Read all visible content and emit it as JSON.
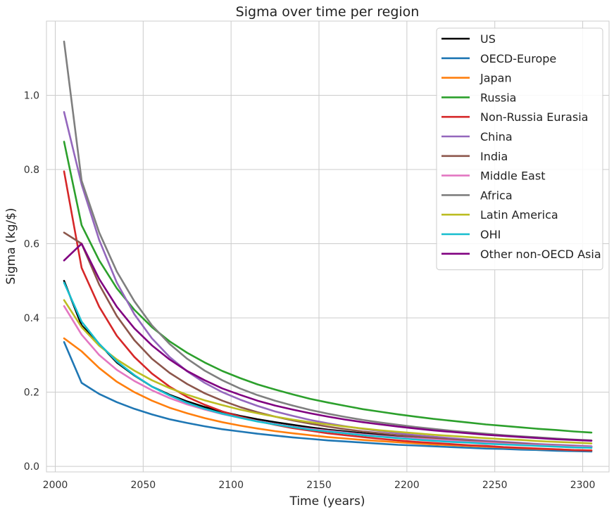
{
  "chart_data": {
    "type": "line",
    "title": "Sigma over time per region",
    "xlabel": "Time (years)",
    "ylabel": "Sigma (kg/$)",
    "xlim": [
      1995,
      2315
    ],
    "ylim": [
      -0.015,
      1.2
    ],
    "xticks": [
      2000,
      2050,
      2100,
      2150,
      2200,
      2250,
      2300
    ],
    "yticks": [
      0.0,
      0.2,
      0.4,
      0.6,
      0.8,
      1.0
    ],
    "grid": true,
    "legend_position": "top-right",
    "x": [
      2005,
      2015,
      2025,
      2035,
      2045,
      2055,
      2065,
      2075,
      2085,
      2095,
      2105,
      2115,
      2125,
      2135,
      2145,
      2155,
      2165,
      2175,
      2185,
      2195,
      2205,
      2215,
      2225,
      2235,
      2245,
      2255,
      2265,
      2275,
      2285,
      2295,
      2305
    ],
    "series": [
      {
        "name": "US",
        "color": "#000000",
        "values": [
          0.5,
          0.38,
          0.33,
          0.28,
          0.245,
          0.215,
          0.193,
          0.175,
          0.16,
          0.147,
          0.136,
          0.127,
          0.119,
          0.112,
          0.105,
          0.099,
          0.094,
          0.089,
          0.085,
          0.081,
          0.077,
          0.074,
          0.071,
          0.068,
          0.066,
          0.063,
          0.061,
          0.059,
          0.057,
          0.055,
          0.053
        ]
      },
      {
        "name": "OECD-Europe",
        "color": "#1f77b4",
        "values": [
          0.335,
          0.225,
          0.195,
          0.173,
          0.155,
          0.14,
          0.127,
          0.117,
          0.108,
          0.1,
          0.094,
          0.088,
          0.083,
          0.078,
          0.074,
          0.07,
          0.067,
          0.064,
          0.061,
          0.058,
          0.056,
          0.054,
          0.052,
          0.05,
          0.048,
          0.047,
          0.045,
          0.044,
          0.042,
          0.041,
          0.04
        ]
      },
      {
        "name": "Japan",
        "color": "#ff7f0e",
        "values": [
          0.345,
          0.31,
          0.265,
          0.228,
          0.2,
          0.177,
          0.158,
          0.143,
          0.13,
          0.119,
          0.11,
          0.102,
          0.095,
          0.089,
          0.084,
          0.079,
          0.075,
          0.071,
          0.068,
          0.065,
          0.062,
          0.059,
          0.057,
          0.055,
          0.053,
          0.051,
          0.049,
          0.047,
          0.046,
          0.044,
          0.043
        ]
      },
      {
        "name": "Russia",
        "color": "#2ca02c",
        "values": [
          0.875,
          0.65,
          0.555,
          0.48,
          0.422,
          0.375,
          0.337,
          0.306,
          0.28,
          0.257,
          0.238,
          0.221,
          0.207,
          0.194,
          0.182,
          0.172,
          0.163,
          0.154,
          0.147,
          0.14,
          0.134,
          0.128,
          0.123,
          0.118,
          0.113,
          0.109,
          0.105,
          0.101,
          0.098,
          0.094,
          0.091
        ]
      },
      {
        "name": "Non-Russia Eurasia",
        "color": "#d62728",
        "values": [
          0.795,
          0.535,
          0.43,
          0.352,
          0.295,
          0.25,
          0.215,
          0.187,
          0.166,
          0.148,
          0.134,
          0.122,
          0.112,
          0.103,
          0.096,
          0.089,
          0.084,
          0.079,
          0.074,
          0.07,
          0.066,
          0.063,
          0.06,
          0.057,
          0.055,
          0.052,
          0.05,
          0.048,
          0.046,
          0.044,
          0.043
        ]
      },
      {
        "name": "China",
        "color": "#9467bd",
        "values": [
          0.955,
          0.76,
          0.61,
          0.495,
          0.41,
          0.345,
          0.295,
          0.256,
          0.225,
          0.2,
          0.18,
          0.163,
          0.148,
          0.136,
          0.125,
          0.116,
          0.108,
          0.101,
          0.095,
          0.089,
          0.084,
          0.08,
          0.076,
          0.072,
          0.069,
          0.066,
          0.063,
          0.06,
          0.058,
          0.056,
          0.054
        ]
      },
      {
        "name": "India",
        "color": "#8c564b",
        "values": [
          0.63,
          0.6,
          0.49,
          0.405,
          0.34,
          0.29,
          0.252,
          0.222,
          0.197,
          0.177,
          0.16,
          0.146,
          0.134,
          0.124,
          0.115,
          0.107,
          0.1,
          0.094,
          0.089,
          0.084,
          0.08,
          0.076,
          0.072,
          0.069,
          0.066,
          0.063,
          0.061,
          0.058,
          0.056,
          0.054,
          0.052
        ]
      },
      {
        "name": "Middle East",
        "color": "#e377c2",
        "values": [
          0.432,
          0.355,
          0.3,
          0.26,
          0.23,
          0.205,
          0.184,
          0.167,
          0.153,
          0.141,
          0.131,
          0.122,
          0.114,
          0.107,
          0.101,
          0.096,
          0.091,
          0.086,
          0.082,
          0.078,
          0.075,
          0.072,
          0.069,
          0.066,
          0.064,
          0.061,
          0.059,
          0.057,
          0.055,
          0.053,
          0.052
        ]
      },
      {
        "name": "Africa",
        "color": "#7f7f7f",
        "values": [
          1.145,
          0.77,
          0.63,
          0.525,
          0.445,
          0.38,
          0.33,
          0.29,
          0.258,
          0.232,
          0.21,
          0.192,
          0.177,
          0.164,
          0.152,
          0.142,
          0.133,
          0.125,
          0.118,
          0.112,
          0.106,
          0.101,
          0.096,
          0.092,
          0.088,
          0.084,
          0.081,
          0.078,
          0.075,
          0.072,
          0.07
        ]
      },
      {
        "name": "Latin America",
        "color": "#bcbd22",
        "values": [
          0.448,
          0.375,
          0.325,
          0.288,
          0.258,
          0.232,
          0.211,
          0.193,
          0.178,
          0.165,
          0.153,
          0.143,
          0.134,
          0.126,
          0.119,
          0.113,
          0.107,
          0.102,
          0.097,
          0.093,
          0.089,
          0.085,
          0.082,
          0.079,
          0.076,
          0.073,
          0.071,
          0.068,
          0.066,
          0.064,
          0.062
        ]
      },
      {
        "name": "OHI",
        "color": "#17becf",
        "values": [
          0.495,
          0.39,
          0.33,
          0.283,
          0.246,
          0.215,
          0.191,
          0.171,
          0.155,
          0.142,
          0.131,
          0.121,
          0.113,
          0.106,
          0.099,
          0.094,
          0.089,
          0.084,
          0.08,
          0.076,
          0.072,
          0.069,
          0.066,
          0.064,
          0.061,
          0.059,
          0.057,
          0.055,
          0.053,
          0.051,
          0.05
        ]
      },
      {
        "name": "Other non-OECD Asia",
        "color": "#800080",
        "values": [
          0.555,
          0.6,
          0.505,
          0.43,
          0.372,
          0.326,
          0.288,
          0.257,
          0.232,
          0.21,
          0.193,
          0.177,
          0.164,
          0.153,
          0.143,
          0.134,
          0.126,
          0.119,
          0.113,
          0.107,
          0.102,
          0.097,
          0.093,
          0.089,
          0.085,
          0.082,
          0.079,
          0.076,
          0.073,
          0.071,
          0.069
        ]
      }
    ]
  }
}
